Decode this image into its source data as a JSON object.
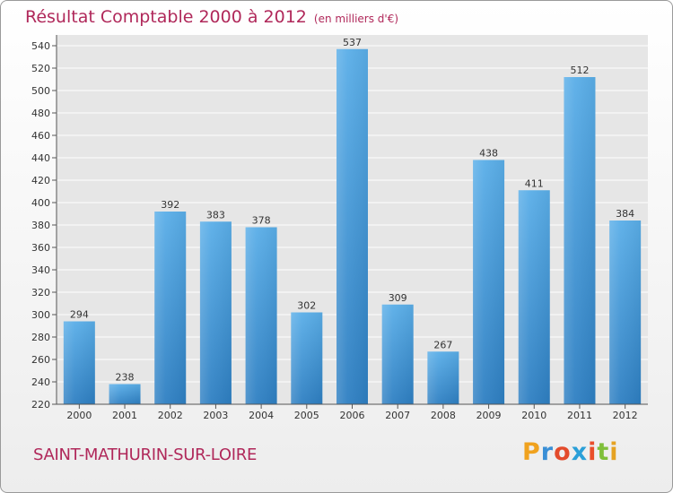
{
  "chart_data": {
    "type": "bar",
    "title": "Résultat Comptable 2000 à 2012",
    "subtitle": "(en milliers d'€)",
    "xlabel": "",
    "ylabel": "",
    "categories": [
      "2000",
      "2001",
      "2002",
      "2003",
      "2004",
      "2005",
      "2006",
      "2007",
      "2008",
      "2009",
      "2010",
      "2011",
      "2012"
    ],
    "values": [
      294,
      238,
      392,
      383,
      378,
      302,
      537,
      309,
      267,
      438,
      411,
      512,
      384
    ],
    "ylim": [
      220,
      540
    ],
    "yticks": [
      220,
      240,
      260,
      280,
      300,
      320,
      340,
      360,
      380,
      400,
      420,
      440,
      460,
      480,
      500,
      520,
      540
    ],
    "grid": true,
    "bar_color_top": "#5aaee8",
    "bar_color_bottom": "#2e7fc2"
  },
  "footer": {
    "commune": "SAINT-MATHURIN-SUR-LOIRE",
    "logo_letters": [
      "P",
      "r",
      "o",
      "x",
      "i",
      "t",
      "i"
    ],
    "logo_colors": [
      "#f0a21e",
      "#3a8fd6",
      "#e34b2b",
      "#2a9fd8",
      "#e94e2b",
      "#7fbf3a",
      "#e5a222"
    ]
  },
  "colors": {
    "title": "#b0285a",
    "grid": "#ffffff",
    "plot_bg": "#e6e6e6"
  }
}
